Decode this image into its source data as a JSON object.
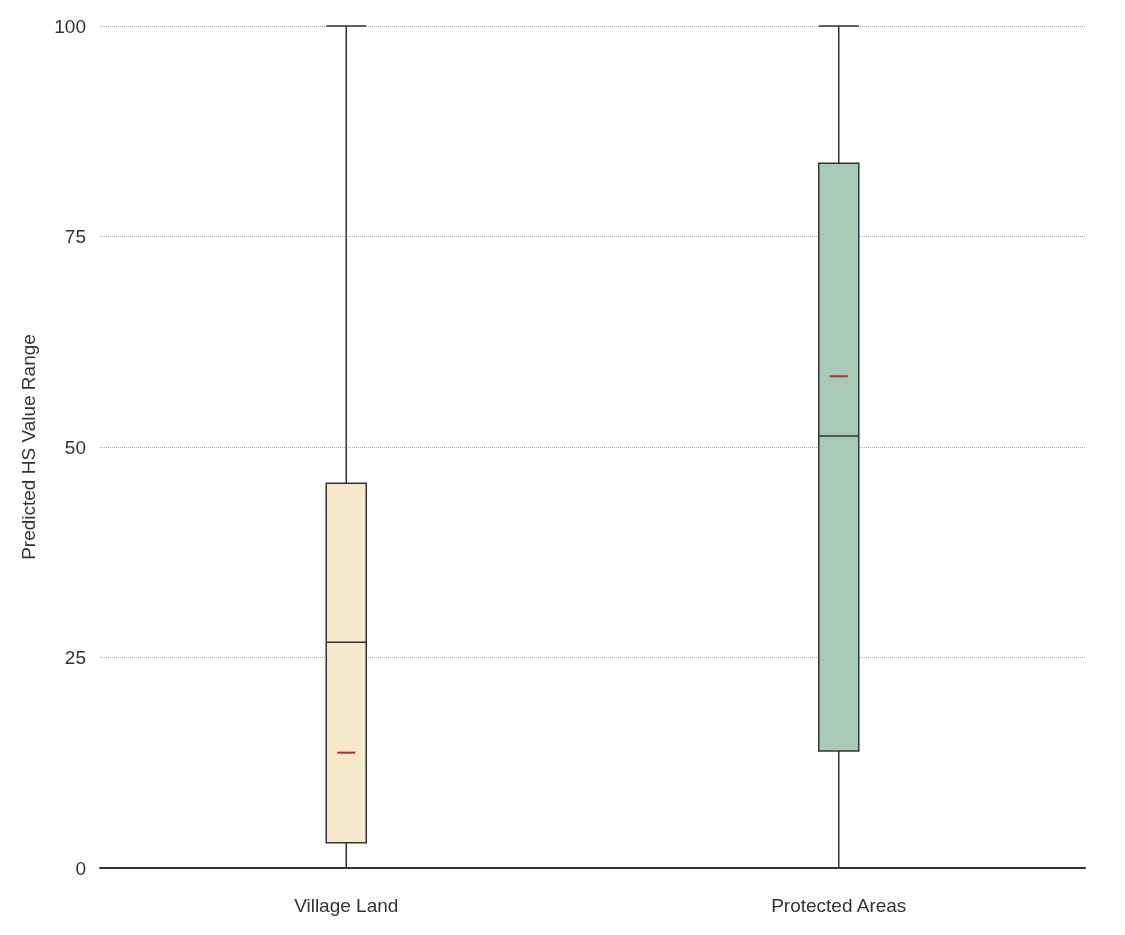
{
  "chart_data": {
    "type": "box",
    "ylabel": "Predicted HS Value Range",
    "categories": [
      "Village Land",
      "Protected Areas"
    ],
    "colors": [
      "#f7e9cc",
      "#a8cbb7"
    ],
    "boxes": [
      {
        "low": 0,
        "q1": 3,
        "median": 26.8,
        "q3": 45.7,
        "high": 100,
        "mean": 13.7
      },
      {
        "low": 0,
        "q1": 13.9,
        "median": 51.3,
        "q3": 83.7,
        "high": 100,
        "mean": 58.4
      }
    ],
    "ylim": [
      0,
      100
    ],
    "yticks": [
      0,
      25,
      50,
      75,
      100
    ],
    "grid": "y"
  }
}
